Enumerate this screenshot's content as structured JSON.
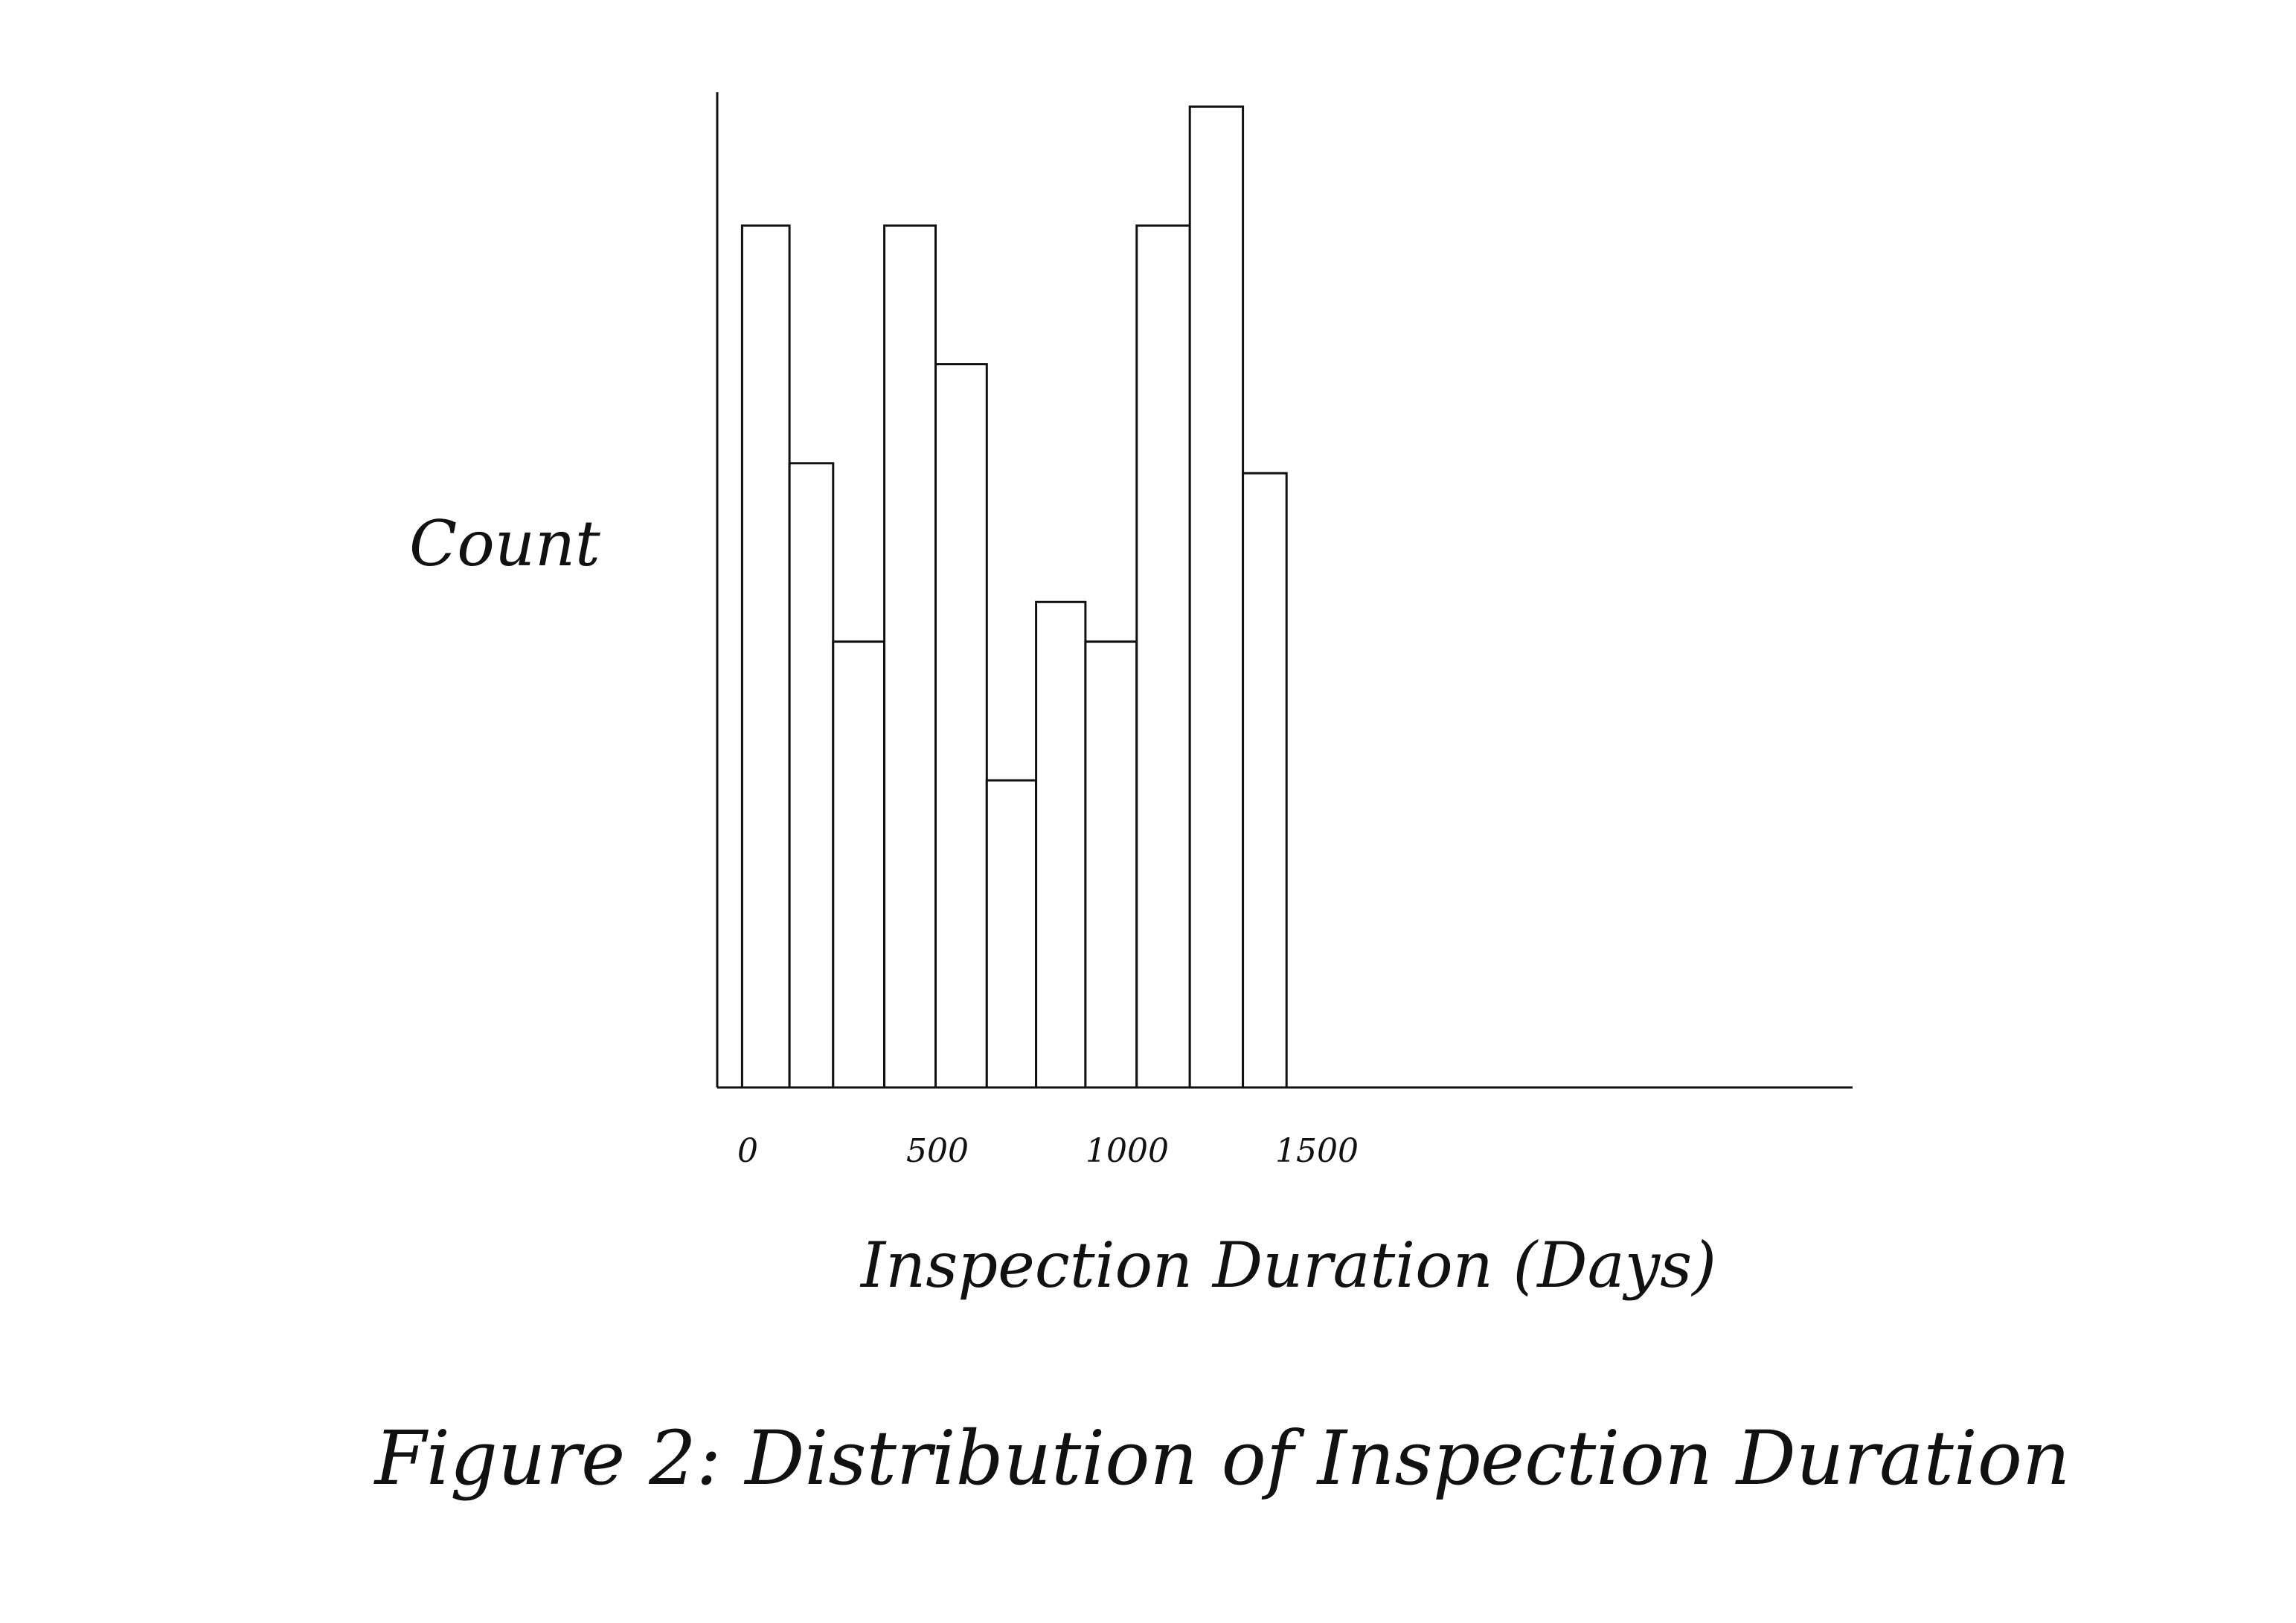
{
  "chart_data": {
    "type": "bar",
    "title": "Figure 2: Distribution of Inspection Duration",
    "xlabel": "Inspection Duration (Days)",
    "ylabel": "Count",
    "x_ticks": [
      0,
      500,
      1000,
      1500
    ],
    "x_tick_labels": [
      "0",
      "500",
      "1000",
      "1500"
    ],
    "xlim": [
      0,
      2000
    ],
    "ylim": [
      0,
      100
    ],
    "grid": false,
    "legend": "none",
    "bars": [
      {
        "x_start": -15,
        "x_end": 110,
        "count": 87
      },
      {
        "x_start": 110,
        "x_end": 225,
        "count": 63
      },
      {
        "x_start": 225,
        "x_end": 360,
        "count": 45
      },
      {
        "x_start": 360,
        "x_end": 495,
        "count": 87
      },
      {
        "x_start": 495,
        "x_end": 630,
        "count": 73
      },
      {
        "x_start": 630,
        "x_end": 760,
        "count": 31
      },
      {
        "x_start": 760,
        "x_end": 890,
        "count": 49
      },
      {
        "x_start": 890,
        "x_end": 1025,
        "count": 45
      },
      {
        "x_start": 1025,
        "x_end": 1165,
        "count": 87
      },
      {
        "x_start": 1165,
        "x_end": 1305,
        "count": 99
      },
      {
        "x_start": 1305,
        "x_end": 1420,
        "count": 62
      }
    ]
  }
}
